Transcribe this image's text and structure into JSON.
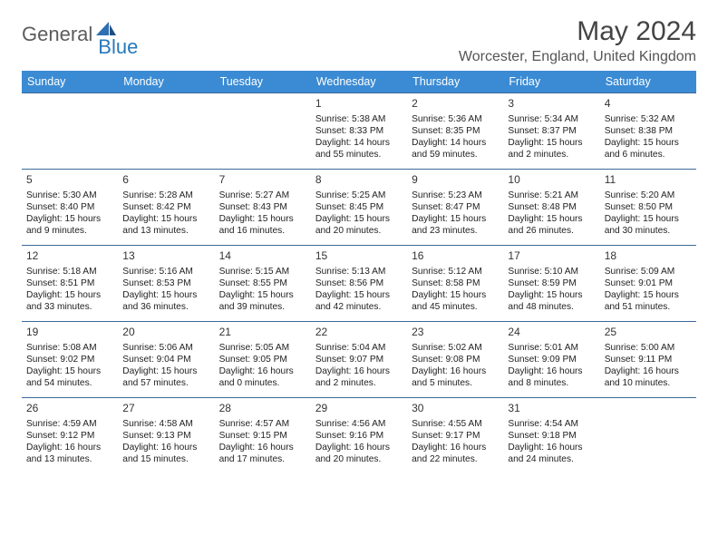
{
  "logo": {
    "word1": "General",
    "word2": "Blue",
    "icon_color": "#2e6fb3"
  },
  "title": "May 2024",
  "location": "Worcester, England, United Kingdom",
  "colors": {
    "header_bg": "#3b8bd4",
    "header_text": "#ffffff",
    "row_border": "#3b6a9a",
    "text": "#222222"
  },
  "weekdays": [
    "Sunday",
    "Monday",
    "Tuesday",
    "Wednesday",
    "Thursday",
    "Friday",
    "Saturday"
  ],
  "weeks": [
    [
      null,
      null,
      null,
      {
        "n": "1",
        "sr": "Sunrise: 5:38 AM",
        "ss": "Sunset: 8:33 PM",
        "dl": "Daylight: 14 hours and 55 minutes."
      },
      {
        "n": "2",
        "sr": "Sunrise: 5:36 AM",
        "ss": "Sunset: 8:35 PM",
        "dl": "Daylight: 14 hours and 59 minutes."
      },
      {
        "n": "3",
        "sr": "Sunrise: 5:34 AM",
        "ss": "Sunset: 8:37 PM",
        "dl": "Daylight: 15 hours and 2 minutes."
      },
      {
        "n": "4",
        "sr": "Sunrise: 5:32 AM",
        "ss": "Sunset: 8:38 PM",
        "dl": "Daylight: 15 hours and 6 minutes."
      }
    ],
    [
      {
        "n": "5",
        "sr": "Sunrise: 5:30 AM",
        "ss": "Sunset: 8:40 PM",
        "dl": "Daylight: 15 hours and 9 minutes."
      },
      {
        "n": "6",
        "sr": "Sunrise: 5:28 AM",
        "ss": "Sunset: 8:42 PM",
        "dl": "Daylight: 15 hours and 13 minutes."
      },
      {
        "n": "7",
        "sr": "Sunrise: 5:27 AM",
        "ss": "Sunset: 8:43 PM",
        "dl": "Daylight: 15 hours and 16 minutes."
      },
      {
        "n": "8",
        "sr": "Sunrise: 5:25 AM",
        "ss": "Sunset: 8:45 PM",
        "dl": "Daylight: 15 hours and 20 minutes."
      },
      {
        "n": "9",
        "sr": "Sunrise: 5:23 AM",
        "ss": "Sunset: 8:47 PM",
        "dl": "Daylight: 15 hours and 23 minutes."
      },
      {
        "n": "10",
        "sr": "Sunrise: 5:21 AM",
        "ss": "Sunset: 8:48 PM",
        "dl": "Daylight: 15 hours and 26 minutes."
      },
      {
        "n": "11",
        "sr": "Sunrise: 5:20 AM",
        "ss": "Sunset: 8:50 PM",
        "dl": "Daylight: 15 hours and 30 minutes."
      }
    ],
    [
      {
        "n": "12",
        "sr": "Sunrise: 5:18 AM",
        "ss": "Sunset: 8:51 PM",
        "dl": "Daylight: 15 hours and 33 minutes."
      },
      {
        "n": "13",
        "sr": "Sunrise: 5:16 AM",
        "ss": "Sunset: 8:53 PM",
        "dl": "Daylight: 15 hours and 36 minutes."
      },
      {
        "n": "14",
        "sr": "Sunrise: 5:15 AM",
        "ss": "Sunset: 8:55 PM",
        "dl": "Daylight: 15 hours and 39 minutes."
      },
      {
        "n": "15",
        "sr": "Sunrise: 5:13 AM",
        "ss": "Sunset: 8:56 PM",
        "dl": "Daylight: 15 hours and 42 minutes."
      },
      {
        "n": "16",
        "sr": "Sunrise: 5:12 AM",
        "ss": "Sunset: 8:58 PM",
        "dl": "Daylight: 15 hours and 45 minutes."
      },
      {
        "n": "17",
        "sr": "Sunrise: 5:10 AM",
        "ss": "Sunset: 8:59 PM",
        "dl": "Daylight: 15 hours and 48 minutes."
      },
      {
        "n": "18",
        "sr": "Sunrise: 5:09 AM",
        "ss": "Sunset: 9:01 PM",
        "dl": "Daylight: 15 hours and 51 minutes."
      }
    ],
    [
      {
        "n": "19",
        "sr": "Sunrise: 5:08 AM",
        "ss": "Sunset: 9:02 PM",
        "dl": "Daylight: 15 hours and 54 minutes."
      },
      {
        "n": "20",
        "sr": "Sunrise: 5:06 AM",
        "ss": "Sunset: 9:04 PM",
        "dl": "Daylight: 15 hours and 57 minutes."
      },
      {
        "n": "21",
        "sr": "Sunrise: 5:05 AM",
        "ss": "Sunset: 9:05 PM",
        "dl": "Daylight: 16 hours and 0 minutes."
      },
      {
        "n": "22",
        "sr": "Sunrise: 5:04 AM",
        "ss": "Sunset: 9:07 PM",
        "dl": "Daylight: 16 hours and 2 minutes."
      },
      {
        "n": "23",
        "sr": "Sunrise: 5:02 AM",
        "ss": "Sunset: 9:08 PM",
        "dl": "Daylight: 16 hours and 5 minutes."
      },
      {
        "n": "24",
        "sr": "Sunrise: 5:01 AM",
        "ss": "Sunset: 9:09 PM",
        "dl": "Daylight: 16 hours and 8 minutes."
      },
      {
        "n": "25",
        "sr": "Sunrise: 5:00 AM",
        "ss": "Sunset: 9:11 PM",
        "dl": "Daylight: 16 hours and 10 minutes."
      }
    ],
    [
      {
        "n": "26",
        "sr": "Sunrise: 4:59 AM",
        "ss": "Sunset: 9:12 PM",
        "dl": "Daylight: 16 hours and 13 minutes."
      },
      {
        "n": "27",
        "sr": "Sunrise: 4:58 AM",
        "ss": "Sunset: 9:13 PM",
        "dl": "Daylight: 16 hours and 15 minutes."
      },
      {
        "n": "28",
        "sr": "Sunrise: 4:57 AM",
        "ss": "Sunset: 9:15 PM",
        "dl": "Daylight: 16 hours and 17 minutes."
      },
      {
        "n": "29",
        "sr": "Sunrise: 4:56 AM",
        "ss": "Sunset: 9:16 PM",
        "dl": "Daylight: 16 hours and 20 minutes."
      },
      {
        "n": "30",
        "sr": "Sunrise: 4:55 AM",
        "ss": "Sunset: 9:17 PM",
        "dl": "Daylight: 16 hours and 22 minutes."
      },
      {
        "n": "31",
        "sr": "Sunrise: 4:54 AM",
        "ss": "Sunset: 9:18 PM",
        "dl": "Daylight: 16 hours and 24 minutes."
      },
      null
    ]
  ]
}
